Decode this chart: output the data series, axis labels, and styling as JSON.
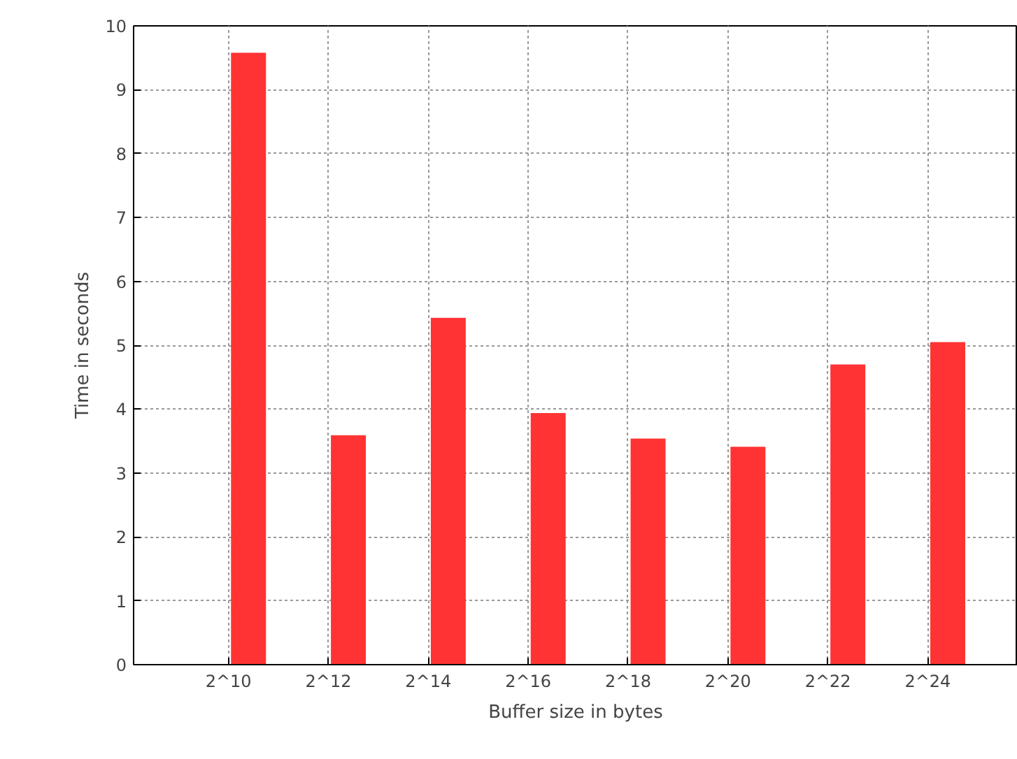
{
  "chart_data": {
    "type": "bar",
    "xlabel": "Buffer size in bytes",
    "ylabel": "Time in seconds",
    "categories": [
      "2^10",
      "2^12",
      "2^14",
      "2^16",
      "2^18",
      "2^20",
      "2^22",
      "2^24"
    ],
    "values": [
      9.58,
      3.59,
      5.43,
      3.94,
      3.54,
      3.41,
      4.7,
      5.05
    ],
    "color": "#ff3333",
    "ylim": [
      0,
      10
    ],
    "yticks": [
      0,
      1,
      2,
      3,
      4,
      5,
      6,
      7,
      8,
      9,
      10
    ],
    "grid": true
  }
}
